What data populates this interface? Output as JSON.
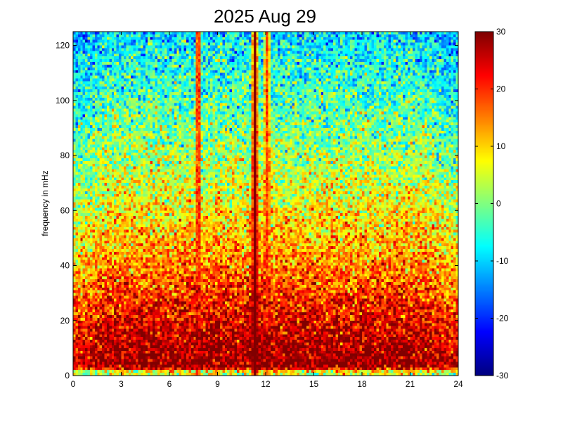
{
  "chart_data": {
    "type": "heatmap",
    "title": "2025 Aug 29",
    "xlabel": "",
    "ylabel": "frequency in mHz",
    "xlim": [
      0,
      24
    ],
    "ylim": [
      0,
      125
    ],
    "x_ticks": [
      0,
      3,
      6,
      9,
      12,
      15,
      18,
      21,
      24
    ],
    "y_ticks": [
      0,
      20,
      40,
      60,
      80,
      100,
      120
    ],
    "colorbar": {
      "colormap": "jet",
      "clim": [
        -30,
        30
      ],
      "ticks": [
        -30,
        -20,
        -10,
        0,
        10,
        20,
        30
      ]
    },
    "grid": false,
    "time_bins": 160,
    "freq_bins": 125,
    "intensity_profile_by_frequency": [
      {
        "frequency": 0,
        "value": 10
      },
      {
        "frequency": 1,
        "value": 1
      },
      {
        "frequency": 3,
        "value": 30
      },
      {
        "frequency": 10,
        "value": 28
      },
      {
        "frequency": 20,
        "value": 24
      },
      {
        "frequency": 40,
        "value": 15
      },
      {
        "frequency": 60,
        "value": 8
      },
      {
        "frequency": 80,
        "value": 2
      },
      {
        "frequency": 100,
        "value": -3
      },
      {
        "frequency": 125,
        "value": -9
      }
    ],
    "features": [
      {
        "x": 11.3,
        "value": 30,
        "label": ""
      },
      {
        "x": 7.8,
        "value": 18,
        "label": ""
      },
      {
        "x": 12.1,
        "value": 18,
        "label": ""
      }
    ]
  }
}
